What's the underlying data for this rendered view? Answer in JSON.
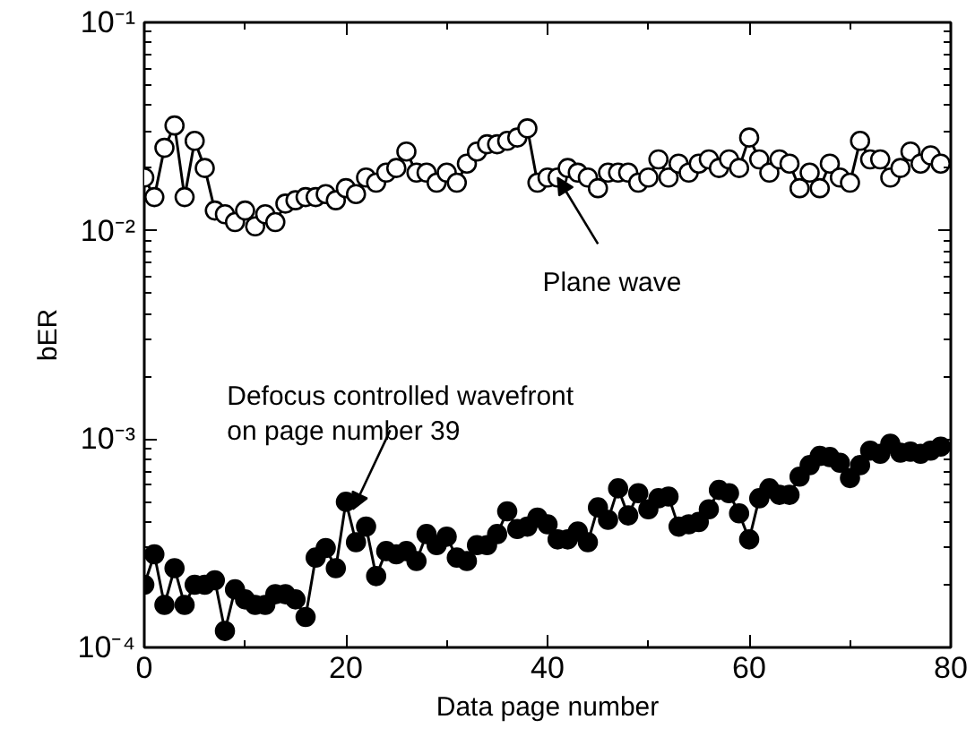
{
  "chart_data": {
    "type": "line",
    "xlabel": "Data page number",
    "ylabel": "bER",
    "log": "y",
    "marker": "circle",
    "line_style": "solid",
    "xlim": [
      0,
      80
    ],
    "xticks": [
      0,
      20,
      40,
      60,
      80
    ],
    "ylim": [
      0.0001,
      0.1
    ],
    "yticks": [
      {
        "value": 0.0001,
        "label": "10⁻⁴"
      },
      {
        "value": 0.001,
        "label": "10⁻³"
      },
      {
        "value": 0.01,
        "label": "10⁻²"
      },
      {
        "value": 0.1,
        "label": "10⁻¹"
      }
    ],
    "x": [
      0,
      1,
      2,
      3,
      4,
      5,
      6,
      7,
      8,
      9,
      10,
      11,
      12,
      13,
      14,
      15,
      16,
      17,
      18,
      19,
      20,
      21,
      22,
      23,
      24,
      25,
      26,
      27,
      28,
      29,
      30,
      31,
      32,
      33,
      34,
      35,
      36,
      37,
      38,
      39,
      40,
      41,
      42,
      43,
      44,
      45,
      46,
      47,
      48,
      49,
      50,
      51,
      52,
      53,
      54,
      55,
      56,
      57,
      58,
      59,
      60,
      61,
      62,
      63,
      64,
      65,
      66,
      67,
      68,
      69,
      70,
      71,
      72,
      73,
      74,
      75,
      76,
      77,
      78,
      79
    ],
    "series": [
      {
        "color": "#000000",
        "values": [
          0.018,
          0.0145,
          0.025,
          0.032,
          0.0145,
          0.027,
          0.02,
          0.0125,
          0.012,
          0.011,
          0.0125,
          0.0105,
          0.012,
          0.011,
          0.0135,
          0.014,
          0.0145,
          0.0145,
          0.015,
          0.014,
          0.016,
          0.015,
          0.018,
          0.017,
          0.019,
          0.02,
          0.024,
          0.019,
          0.019,
          0.017,
          0.019,
          0.017,
          0.021,
          0.024,
          0.026,
          0.026,
          0.027,
          0.028,
          0.031,
          0.017,
          0.018,
          0.018,
          0.02,
          0.019,
          0.018,
          0.016,
          0.019,
          0.019,
          0.019,
          0.017,
          0.018,
          0.022,
          0.018,
          0.021,
          0.019,
          0.021,
          0.022,
          0.02,
          0.022,
          0.02,
          0.028,
          0.022,
          0.019,
          0.022,
          0.021,
          0.016,
          0.019,
          0.016,
          0.021,
          0.018,
          0.017,
          0.027,
          0.022,
          0.022,
          0.018,
          0.02,
          0.024,
          0.021,
          0.023,
          0.021
        ]
      },
      {
        "color": "#000000",
        "values": [
          0.0002,
          0.00028,
          0.00016,
          0.00024,
          0.00016,
          0.0002,
          0.0002,
          0.00021,
          0.00012,
          0.00019,
          0.00017,
          0.00016,
          0.00016,
          0.00018,
          0.00018,
          0.00017,
          0.00014,
          0.00027,
          0.0003,
          0.00024,
          0.0005,
          0.00032,
          0.00038,
          0.00022,
          0.00029,
          0.00028,
          0.00029,
          0.00026,
          0.00035,
          0.00031,
          0.00034,
          0.00027,
          0.00026,
          0.00031,
          0.00031,
          0.00035,
          0.00045,
          0.00037,
          0.00038,
          0.00042,
          0.00039,
          0.00033,
          0.00033,
          0.00036,
          0.00032,
          0.00047,
          0.00041,
          0.00058,
          0.00043,
          0.00055,
          0.00046,
          0.00052,
          0.00053,
          0.00038,
          0.00039,
          0.0004,
          0.00046,
          0.00057,
          0.00055,
          0.00044,
          0.00033,
          0.00052,
          0.00058,
          0.00054,
          0.00054,
          0.00066,
          0.00075,
          0.00083,
          0.00082,
          0.00077,
          0.00065,
          0.00075,
          0.00088,
          0.00085,
          0.00095,
          0.00086,
          0.00087,
          0.00085,
          0.00088,
          0.00092
        ]
      }
    ],
    "annotations": [
      {
        "text": "Plane wave",
        "x": 41,
        "y": 0.018
      },
      {
        "text": "Defocus controlled wavefront\non page number 39",
        "x": 20.7,
        "y": 0.00046
      }
    ]
  }
}
